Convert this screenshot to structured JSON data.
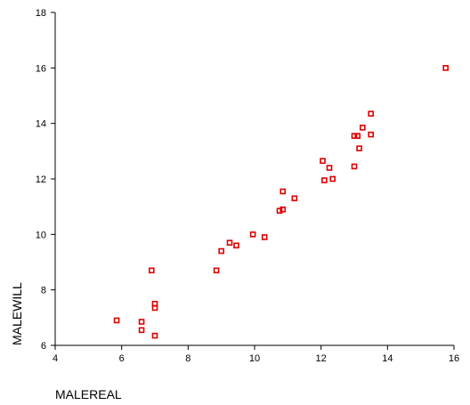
{
  "chart_data": {
    "type": "scatter",
    "title": "",
    "xlabel": "MALEREAL",
    "ylabel": "MALEWILL",
    "xlim": [
      4,
      16
    ],
    "ylim": [
      6,
      18
    ],
    "xticks": [
      4,
      6,
      8,
      10,
      12,
      14,
      16
    ],
    "yticks": [
      6,
      8,
      10,
      12,
      14,
      16,
      18
    ],
    "grid": false,
    "marker": "hollow-square",
    "marker_color": "#dd0000",
    "points": [
      {
        "x": 5.85,
        "y": 6.9
      },
      {
        "x": 6.6,
        "y": 6.85
      },
      {
        "x": 6.6,
        "y": 6.55
      },
      {
        "x": 7.0,
        "y": 6.35
      },
      {
        "x": 7.0,
        "y": 7.35
      },
      {
        "x": 7.0,
        "y": 7.5
      },
      {
        "x": 6.9,
        "y": 8.7
      },
      {
        "x": 8.85,
        "y": 8.7
      },
      {
        "x": 9.0,
        "y": 9.4
      },
      {
        "x": 9.25,
        "y": 9.7
      },
      {
        "x": 9.45,
        "y": 9.6
      },
      {
        "x": 9.95,
        "y": 10.0
      },
      {
        "x": 10.3,
        "y": 9.9
      },
      {
        "x": 10.75,
        "y": 10.85
      },
      {
        "x": 10.85,
        "y": 10.9
      },
      {
        "x": 10.85,
        "y": 11.55
      },
      {
        "x": 11.2,
        "y": 11.3
      },
      {
        "x": 12.05,
        "y": 12.65
      },
      {
        "x": 12.1,
        "y": 11.95
      },
      {
        "x": 12.25,
        "y": 12.4
      },
      {
        "x": 12.35,
        "y": 12.0
      },
      {
        "x": 13.0,
        "y": 12.45
      },
      {
        "x": 13.0,
        "y": 13.55
      },
      {
        "x": 13.1,
        "y": 13.55
      },
      {
        "x": 13.15,
        "y": 13.1
      },
      {
        "x": 13.25,
        "y": 13.85
      },
      {
        "x": 13.5,
        "y": 14.35
      },
      {
        "x": 13.5,
        "y": 13.6
      },
      {
        "x": 15.75,
        "y": 16.0
      }
    ]
  }
}
